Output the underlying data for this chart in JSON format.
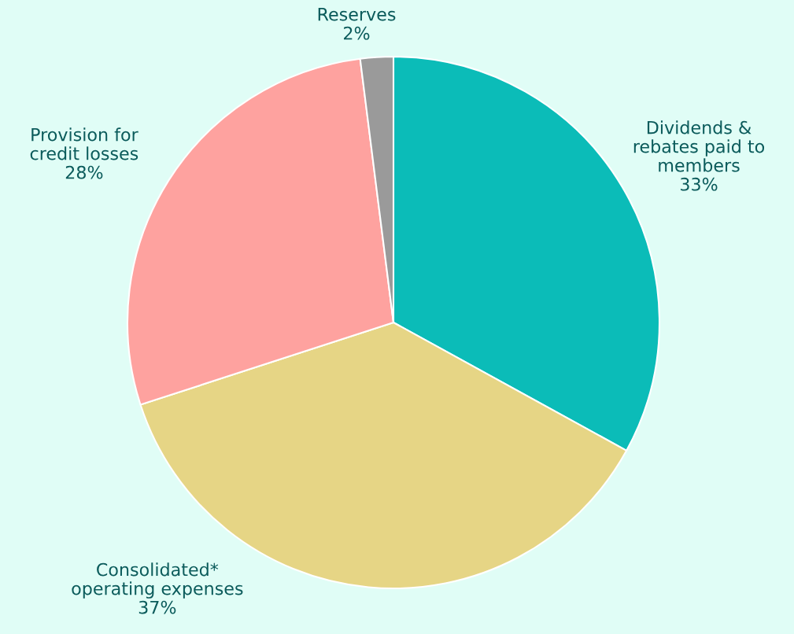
{
  "chart_data": {
    "type": "pie",
    "categories": [
      "Dividends &\nrebates paid to\nmembers",
      "Consolidated*\noperating expenses",
      "Provision for\ncredit losses",
      "Reserves"
    ],
    "values": [
      33,
      37,
      28,
      2
    ],
    "value_labels": [
      "33%",
      "37%",
      "28%",
      "2%"
    ],
    "colors": [
      "#0bbcb8",
      "#e6d585",
      "#fea29f",
      "#9a9a9a"
    ],
    "legend": false
  }
}
